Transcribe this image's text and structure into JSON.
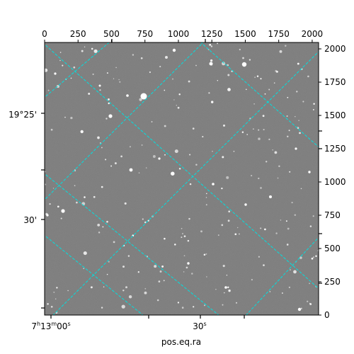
{
  "plot": {
    "xlabel": "pos.eq.ra",
    "top_ticks": [
      "0",
      "250",
      "500",
      "750",
      "1000",
      "1250",
      "1500",
      "1750",
      "2000"
    ],
    "right_ticks": [
      "0",
      "250",
      "500",
      "750",
      "1000",
      "1250",
      "1500",
      "1750",
      "2000"
    ],
    "ra_labels": {
      "first_h": "7",
      "first_m": "13",
      "first_s": "00",
      "second_s": "30"
    },
    "dec_labels": [
      "19°25'",
      "30'"
    ],
    "grid_color": "#00e0e0",
    "image_background": "#7a7a7a",
    "pixel_range": [
      0,
      2048
    ]
  }
}
